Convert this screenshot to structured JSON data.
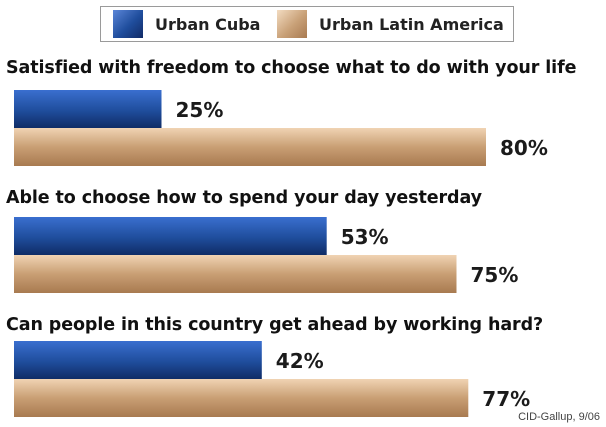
{
  "chart_data": {
    "type": "bar",
    "orientation": "horizontal",
    "categories": [
      "Satisfied with freedom to choose what to do with your life",
      "Able to choose how to spend your day yesterday",
      "Can people in this country get ahead by working hard?"
    ],
    "series": [
      {
        "name": "Urban Cuba",
        "values": [
          25,
          53,
          42
        ],
        "color": "#1f4d9c",
        "labels": [
          "25%",
          "53%",
          "42%"
        ]
      },
      {
        "name": "Urban Latin America",
        "values": [
          80,
          75,
          77
        ],
        "color": "#c8a077",
        "labels": [
          "80%",
          "75%",
          "77%"
        ]
      }
    ],
    "xlim": [
      0,
      100
    ],
    "legend_position": "top",
    "grid": false
  },
  "source": "CID-Gallup, 9/06",
  "colors": {
    "cuba": "#1f4d9c",
    "latam": "#c8a077"
  }
}
